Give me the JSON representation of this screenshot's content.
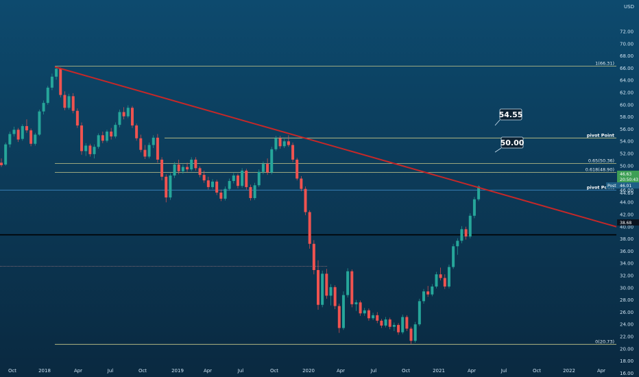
{
  "header": {
    "currency_label": "USD"
  },
  "callouts": {
    "resistance_upper": "54.55",
    "resistance_lower": "50.00"
  },
  "price_tags": {
    "last": "46.63",
    "last_sub": "20:50:43",
    "pivot_val": "46.01",
    "post_label": "Post",
    "black_line": "38.68",
    "tag_44_69": "44.69"
  },
  "colors": {
    "background_top": "#0d4a6e",
    "background_bottom": "#0a2940",
    "up_candle": "#26a69a",
    "down_candle": "#ef5350",
    "trendline": "#c62828",
    "fib_line": "#c9c98a",
    "black_line": "#000000"
  },
  "chart_data": {
    "type": "candlestick",
    "title": "",
    "xlabel": "",
    "ylabel": "",
    "ylim": [
      15,
      74
    ],
    "x_tick_labels": [
      "Oct",
      "2018",
      "Apr",
      "Jul",
      "Oct",
      "2019",
      "Apr",
      "Jul",
      "Oct",
      "2020",
      "Apr",
      "Jul",
      "Oct",
      "2021",
      "Apr",
      "Jul",
      "Oct",
      "2022",
      "Apr"
    ],
    "y_tick_labels": [
      "72.00",
      "70.00",
      "68.00",
      "66.00",
      "64.00",
      "62.00",
      "60.00",
      "58.00",
      "56.00",
      "54.00",
      "52.00",
      "50.00",
      "48.00",
      "46.00",
      "44.00",
      "42.00",
      "40.00",
      "38.00",
      "36.00",
      "34.00",
      "32.00",
      "30.00",
      "28.00",
      "26.00",
      "24.00",
      "22.00",
      "20.00",
      "18.00",
      "16.00"
    ],
    "y_tick_values": [
      72,
      70,
      68,
      66,
      64,
      62,
      60,
      58,
      56,
      54,
      52,
      50,
      48,
      46,
      44,
      42,
      40,
      38,
      36,
      34,
      32,
      30,
      28,
      26,
      24,
      22,
      20,
      18,
      16
    ],
    "horizontal_levels": [
      {
        "label": "1(66.31)",
        "value": 66.31
      },
      {
        "label": "pivot Point",
        "value": 54.55
      },
      {
        "label": "0.65(50.36)",
        "value": 50.36
      },
      {
        "label": "0.618(48.90)",
        "value": 48.9
      },
      {
        "label": "pivot Point",
        "value": 46.01
      },
      {
        "label": "",
        "value": 38.68
      },
      {
        "label": "0(20.73)",
        "value": 20.73
      }
    ],
    "trendline": {
      "from": [
        "2018-02",
        66.2
      ],
      "to": [
        "2022-06",
        40.0
      ]
    },
    "ohlc_weekly": [
      [
        50.5,
        51.2,
        49.8,
        50.1
      ],
      [
        50.2,
        53.8,
        50.0,
        53.5
      ],
      [
        53.5,
        55.6,
        53.0,
        55.2
      ],
      [
        55.2,
        56.4,
        54.8,
        55.9
      ],
      [
        55.9,
        56.2,
        53.9,
        54.3
      ],
      [
        54.4,
        56.8,
        54.1,
        56.5
      ],
      [
        56.5,
        57.6,
        55.4,
        55.8
      ],
      [
        55.8,
        56.1,
        53.2,
        53.6
      ],
      [
        53.6,
        55.4,
        53.3,
        55.1
      ],
      [
        55.1,
        59.2,
        54.9,
        58.9
      ],
      [
        58.9,
        60.7,
        58.4,
        60.3
      ],
      [
        60.3,
        63.1,
        60.0,
        62.8
      ],
      [
        62.8,
        65.1,
        62.4,
        64.6
      ],
      [
        64.6,
        66.3,
        64.1,
        65.9
      ],
      [
        65.9,
        66.1,
        61.2,
        61.6
      ],
      [
        61.6,
        62.2,
        59.1,
        59.5
      ],
      [
        59.5,
        61.8,
        59.2,
        61.4
      ],
      [
        61.4,
        61.9,
        58.6,
        59.0
      ],
      [
        59.0,
        59.4,
        56.2,
        56.6
      ],
      [
        56.6,
        57.1,
        51.8,
        52.4
      ],
      [
        52.4,
        53.7,
        51.6,
        53.3
      ],
      [
        53.3,
        53.6,
        51.5,
        51.9
      ],
      [
        51.9,
        53.5,
        51.2,
        53.1
      ],
      [
        53.1,
        55.3,
        52.8,
        55.0
      ],
      [
        55.0,
        55.6,
        53.7,
        54.1
      ],
      [
        54.1,
        55.9,
        53.8,
        55.6
      ],
      [
        55.6,
        56.2,
        54.3,
        54.8
      ],
      [
        54.8,
        57.1,
        54.5,
        56.7
      ],
      [
        56.7,
        59.2,
        56.3,
        58.8
      ],
      [
        58.8,
        59.6,
        57.6,
        58.1
      ],
      [
        58.1,
        59.9,
        57.8,
        59.5
      ],
      [
        59.5,
        59.8,
        56.2,
        56.6
      ],
      [
        56.6,
        56.9,
        54.1,
        54.5
      ],
      [
        54.5,
        55.1,
        52.2,
        52.6
      ],
      [
        52.6,
        53.4,
        51.1,
        51.5
      ],
      [
        51.5,
        53.8,
        51.2,
        53.4
      ],
      [
        53.4,
        55.0,
        52.9,
        54.6
      ],
      [
        54.6,
        55.2,
        50.5,
        51.0
      ],
      [
        51.0,
        51.4,
        47.6,
        48.2
      ],
      [
        48.2,
        48.6,
        44.0,
        44.8
      ],
      [
        44.8,
        48.8,
        44.4,
        48.4
      ],
      [
        48.4,
        50.6,
        48.0,
        50.2
      ],
      [
        50.2,
        51.0,
        48.6,
        49.1
      ],
      [
        49.1,
        50.2,
        48.7,
        49.8
      ],
      [
        49.8,
        50.5,
        49.0,
        49.4
      ],
      [
        49.4,
        51.4,
        49.1,
        51.0
      ],
      [
        51.0,
        51.4,
        49.2,
        49.6
      ],
      [
        49.6,
        49.9,
        48.1,
        48.5
      ],
      [
        48.5,
        49.2,
        47.2,
        47.6
      ],
      [
        47.6,
        48.2,
        46.1,
        46.5
      ],
      [
        46.5,
        47.8,
        46.2,
        47.4
      ],
      [
        47.4,
        47.7,
        45.2,
        45.6
      ],
      [
        45.6,
        46.1,
        44.2,
        44.6
      ],
      [
        44.6,
        46.6,
        44.3,
        46.2
      ],
      [
        46.2,
        47.9,
        45.9,
        47.5
      ],
      [
        47.5,
        48.8,
        47.1,
        48.4
      ],
      [
        48.4,
        48.7,
        46.3,
        46.7
      ],
      [
        46.7,
        49.6,
        46.4,
        49.2
      ],
      [
        49.2,
        49.5,
        46.1,
        46.5
      ],
      [
        46.5,
        46.9,
        44.3,
        44.7
      ],
      [
        44.7,
        47.2,
        44.4,
        46.8
      ],
      [
        46.8,
        49.4,
        46.5,
        49.0
      ],
      [
        49.0,
        50.7,
        48.6,
        50.3
      ],
      [
        50.3,
        51.2,
        48.5,
        48.9
      ],
      [
        48.9,
        53.1,
        48.6,
        52.7
      ],
      [
        52.7,
        54.9,
        52.4,
        54.5
      ],
      [
        54.5,
        54.9,
        52.8,
        53.2
      ],
      [
        53.2,
        54.4,
        52.9,
        54.0
      ],
      [
        54.0,
        55.0,
        53.1,
        53.4
      ],
      [
        53.4,
        53.8,
        50.6,
        51.0
      ],
      [
        51.0,
        51.3,
        47.6,
        47.9
      ],
      [
        47.9,
        48.3,
        45.8,
        46.2
      ],
      [
        46.2,
        46.6,
        41.9,
        42.4
      ],
      [
        42.4,
        42.7,
        36.4,
        37.2
      ],
      [
        37.2,
        37.8,
        32.2,
        32.9
      ],
      [
        32.9,
        34.5,
        26.4,
        27.2
      ],
      [
        27.2,
        32.8,
        26.8,
        32.3
      ],
      [
        32.3,
        33.1,
        28.2,
        28.7
      ],
      [
        28.7,
        30.6,
        27.1,
        30.1
      ],
      [
        30.1,
        30.4,
        26.5,
        27.0
      ],
      [
        27.0,
        27.4,
        22.6,
        23.4
      ],
      [
        23.4,
        29.4,
        23.1,
        28.8
      ],
      [
        28.8,
        33.2,
        28.4,
        32.7
      ],
      [
        32.7,
        33.0,
        26.8,
        27.3
      ],
      [
        27.3,
        28.0,
        26.2,
        27.6
      ],
      [
        27.6,
        27.9,
        25.4,
        25.8
      ],
      [
        25.8,
        26.7,
        25.4,
        26.3
      ],
      [
        26.3,
        26.6,
        24.6,
        25.0
      ],
      [
        25.0,
        25.9,
        24.7,
        25.5
      ],
      [
        25.5,
        26.0,
        24.2,
        24.6
      ],
      [
        24.6,
        24.9,
        23.4,
        23.8
      ],
      [
        23.8,
        25.2,
        23.5,
        24.8
      ],
      [
        24.8,
        25.1,
        23.2,
        23.6
      ],
      [
        23.6,
        24.3,
        22.9,
        23.9
      ],
      [
        23.9,
        24.2,
        22.3,
        22.7
      ],
      [
        22.7,
        25.6,
        22.4,
        25.2
      ],
      [
        25.2,
        25.5,
        22.9,
        23.3
      ],
      [
        23.3,
        23.6,
        20.8,
        21.3
      ],
      [
        21.3,
        24.4,
        21.0,
        24.0
      ],
      [
        24.0,
        28.2,
        23.7,
        27.8
      ],
      [
        27.8,
        29.8,
        27.4,
        29.4
      ],
      [
        29.4,
        30.3,
        28.5,
        28.9
      ],
      [
        28.9,
        30.6,
        28.6,
        30.2
      ],
      [
        30.2,
        32.6,
        29.9,
        32.2
      ],
      [
        32.2,
        33.3,
        31.2,
        31.6
      ],
      [
        31.6,
        32.2,
        29.8,
        30.2
      ],
      [
        30.2,
        33.8,
        29.9,
        33.4
      ],
      [
        33.4,
        37.2,
        33.1,
        36.8
      ],
      [
        36.8,
        38.1,
        35.4,
        37.7
      ],
      [
        37.7,
        40.1,
        37.3,
        39.6
      ],
      [
        39.6,
        40.0,
        37.9,
        38.4
      ],
      [
        38.4,
        42.2,
        38.1,
        41.8
      ],
      [
        41.8,
        44.9,
        41.4,
        44.5
      ],
      [
        44.5,
        46.8,
        44.2,
        46.6
      ]
    ]
  }
}
